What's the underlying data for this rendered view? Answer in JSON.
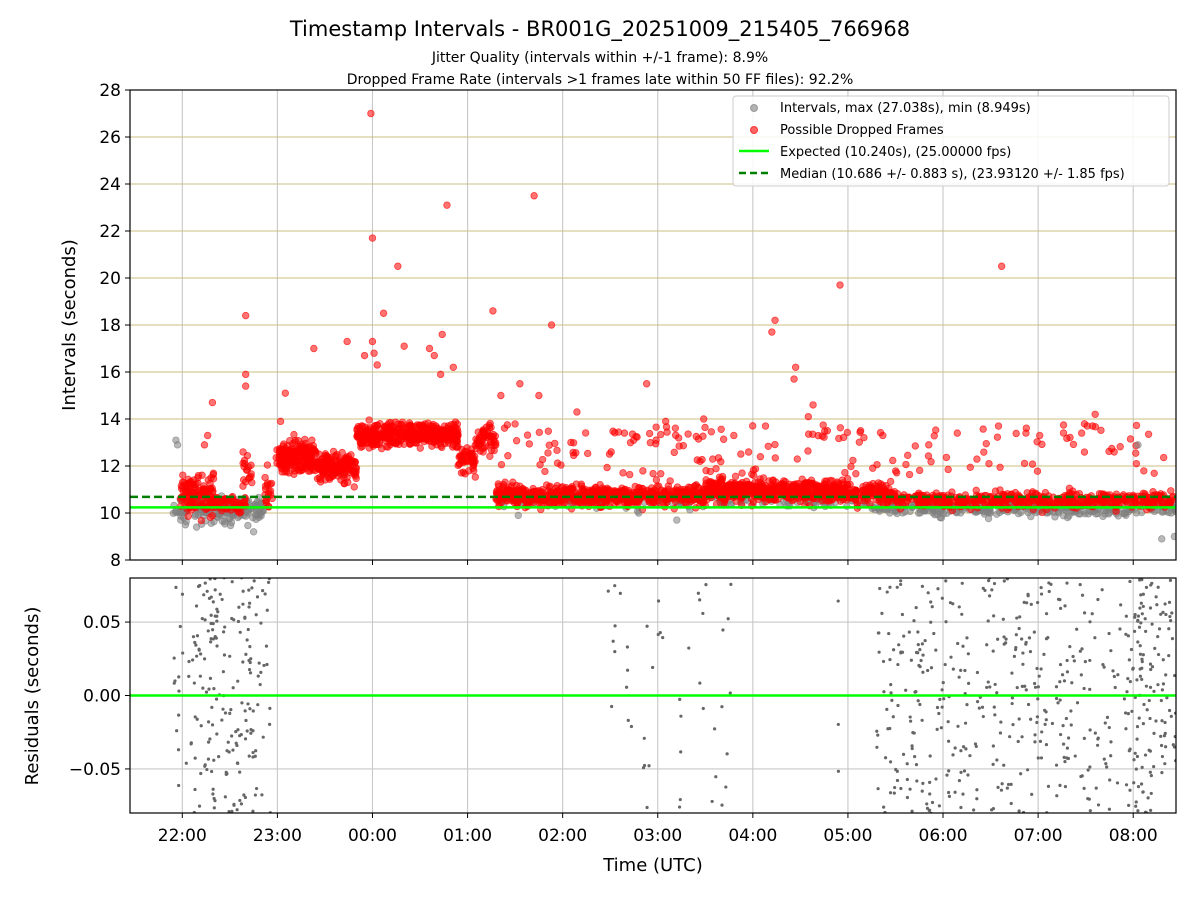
{
  "chart_data": [
    {
      "type": "scatter",
      "title": "Timestamp Intervals - BR001G_20251009_215405_766968",
      "subtitle_lines": [
        "Jitter Quality (intervals within +/-1 frame): 8.9%",
        "Dropped Frame Rate (intervals >1 frames late within 50 FF files): 92.2%"
      ],
      "ylabel": "Intervals (seconds)",
      "xlim": [
        "2025-10-09 21:27",
        "2025-10-10 08:27"
      ],
      "ylim": [
        8,
        28
      ],
      "y_ticks": [
        8,
        10,
        12,
        14,
        16,
        18,
        20,
        22,
        24,
        26,
        28
      ],
      "grid": true,
      "legend": "top-right",
      "legend_entries": [
        {
          "label": "Intervals, max (27.038s), min (8.949s)",
          "marker": "circle",
          "color": "#808080"
        },
        {
          "label": "Possible Dropped Frames",
          "marker": "circle",
          "color": "#ff0000"
        },
        {
          "label": "Expected (10.240s), (25.00000 fps)",
          "marker": "solid-line",
          "color": "#00ff00"
        },
        {
          "label": "Median (10.686 +/- 0.883 s), (23.93120 +/- 1.85 fps)",
          "marker": "dashed-line",
          "color": "#008000"
        }
      ],
      "reference_lines": {
        "expected": 10.24,
        "median": 10.686
      },
      "series": [
        {
          "name": "Possible Dropped Frames",
          "color": "#ff0000",
          "points": [
            [
              "2025-10-09 22:19",
              14.7
            ],
            [
              "2025-10-09 22:16",
              13.3
            ],
            [
              "2025-10-09 22:14",
              12.9
            ],
            [
              "2025-10-09 22:40",
              18.4
            ],
            [
              "2025-10-09 22:40",
              15.9
            ],
            [
              "2025-10-09 22:40",
              15.4
            ],
            [
              "2025-10-09 23:05",
              15.1
            ],
            [
              "2025-10-09 23:02",
              13.9
            ],
            [
              "2025-10-09 23:23",
              17.0
            ],
            [
              "2025-10-09 23:44",
              17.3
            ],
            [
              "2025-10-09 23:59",
              27.0
            ],
            [
              "2025-10-10 00:00",
              21.7
            ],
            [
              "2025-10-10 00:00",
              17.3
            ],
            [
              "2025-10-10 00:01",
              16.8
            ],
            [
              "2025-10-10 00:03",
              16.3
            ],
            [
              "2025-10-09 23:55",
              16.7
            ],
            [
              "2025-10-10 00:07",
              18.5
            ],
            [
              "2025-10-10 00:16",
              20.5
            ],
            [
              "2025-10-10 00:20",
              17.1
            ],
            [
              "2025-10-10 00:36",
              17.0
            ],
            [
              "2025-10-10 00:39",
              16.7
            ],
            [
              "2025-10-10 00:44",
              17.6
            ],
            [
              "2025-10-10 00:47",
              23.1
            ],
            [
              "2025-10-10 00:51",
              16.2
            ],
            [
              "2025-10-10 00:43",
              15.9
            ],
            [
              "2025-10-10 01:16",
              18.6
            ],
            [
              "2025-10-10 01:42",
              23.5
            ],
            [
              "2025-10-10 01:45",
              15.0
            ],
            [
              "2025-10-10 01:53",
              18.0
            ],
            [
              "2025-10-10 01:33",
              15.5
            ],
            [
              "2025-10-10 01:21",
              15.0
            ],
            [
              "2025-10-10 02:09",
              14.3
            ],
            [
              "2025-10-10 02:39",
              13.4
            ],
            [
              "2025-10-10 02:53",
              15.5
            ],
            [
              "2025-10-10 03:05",
              13.9
            ],
            [
              "2025-10-10 03:29",
              14.0
            ],
            [
              "2025-10-10 03:48",
              13.3
            ],
            [
              "2025-10-10 04:08",
              13.7
            ],
            [
              "2025-10-10 04:12",
              17.7
            ],
            [
              "2025-10-10 04:14",
              18.2
            ],
            [
              "2025-10-10 04:27",
              16.2
            ],
            [
              "2025-10-10 04:26",
              15.7
            ],
            [
              "2025-10-10 04:35",
              14.1
            ],
            [
              "2025-10-10 04:38",
              14.6
            ],
            [
              "2025-10-10 04:47",
              13.5
            ],
            [
              "2025-10-10 04:55",
              19.7
            ],
            [
              "2025-10-10 05:08",
              13.5
            ],
            [
              "2025-10-10 05:22",
              13.3
            ],
            [
              "2025-10-10 05:51",
              12.9
            ],
            [
              "2025-10-10 06:09",
              13.4
            ],
            [
              "2025-10-10 06:29",
              12.1
            ],
            [
              "2025-10-10 06:35",
              13.7
            ],
            [
              "2025-10-10 06:37",
              20.5
            ],
            [
              "2025-10-10 07:01",
              13.3
            ],
            [
              "2025-10-10 07:36",
              14.2
            ],
            [
              "2025-10-10 07:48",
              12.6
            ],
            [
              "2025-10-10 08:02",
              12.1
            ]
          ]
        },
        {
          "name": "Intervals, max (27.038s), min (8.949s)",
          "color": "#808080",
          "points": [
            [
              "2025-10-09 21:56",
              13.1
            ],
            [
              "2025-10-09 21:57",
              12.9
            ],
            [
              "2025-10-09 21:59",
              9.7
            ],
            [
              "2025-10-09 22:02",
              9.5
            ],
            [
              "2025-10-09 22:09",
              9.4
            ],
            [
              "2025-10-09 22:31",
              9.6
            ],
            [
              "2025-10-09 22:45",
              9.2
            ],
            [
              "2025-10-10 01:32",
              9.9
            ],
            [
              "2025-10-10 02:48",
              10.0
            ],
            [
              "2025-10-10 03:12",
              9.7
            ],
            [
              "2025-10-10 08:03",
              12.9
            ],
            [
              "2025-10-10 08:18",
              8.9
            ],
            [
              "2025-10-10 08:26",
              9.0
            ]
          ]
        }
      ]
    },
    {
      "type": "scatter",
      "xlabel": "Time (UTC)",
      "ylabel": "Residuals (seconds)",
      "ylim": [
        -0.08,
        0.08
      ],
      "y_ticks": [
        {
          "value": -0.05,
          "label": "−0.05"
        },
        {
          "value": 0.0,
          "label": "0.00"
        },
        {
          "value": 0.05,
          "label": "0.05"
        }
      ],
      "x_ticks": [
        {
          "value": "2025-10-09 22:00",
          "label": "22:00"
        },
        {
          "value": "2025-10-09 23:00",
          "label": "23:00"
        },
        {
          "value": "2025-10-10 00:00",
          "label": "00:00"
        },
        {
          "value": "2025-10-10 01:00",
          "label": "01:00"
        },
        {
          "value": "2025-10-10 02:00",
          "label": "02:00"
        },
        {
          "value": "2025-10-10 03:00",
          "label": "03:00"
        },
        {
          "value": "2025-10-10 04:00",
          "label": "04:00"
        },
        {
          "value": "2025-10-10 05:00",
          "label": "05:00"
        },
        {
          "value": "2025-10-10 06:00",
          "label": "06:00"
        },
        {
          "value": "2025-10-10 07:00",
          "label": "07:00"
        },
        {
          "value": "2025-10-10 08:00",
          "label": "08:00"
        }
      ],
      "grid": true,
      "reference_line": 0.0,
      "point_color": "#666666",
      "line_color": "#00ff00",
      "residual_ranges": [
        {
          "start": "2025-10-09 21:54",
          "end": "2025-10-09 22:08",
          "count": 25
        },
        {
          "start": "2025-10-09 22:08",
          "end": "2025-10-09 22:37",
          "count": 120
        },
        {
          "start": "2025-10-09 22:37",
          "end": "2025-10-09 22:56",
          "count": 70
        },
        {
          "start": "2025-10-10 02:27",
          "end": "2025-10-10 02:42",
          "count": 12
        },
        {
          "start": "2025-10-10 02:42",
          "end": "2025-10-10 03:17",
          "count": 18
        },
        {
          "start": "2025-10-10 03:17",
          "end": "2025-10-10 03:50",
          "count": 18
        },
        {
          "start": "2025-10-10 04:52",
          "end": "2025-10-10 04:55",
          "count": 3
        },
        {
          "start": "2025-10-10 05:18",
          "end": "2025-10-10 06:05",
          "count": 130
        },
        {
          "start": "2025-10-10 06:05",
          "end": "2025-10-10 07:05",
          "count": 150
        },
        {
          "start": "2025-10-10 07:05",
          "end": "2025-10-10 07:55",
          "count": 110
        },
        {
          "start": "2025-10-10 07:55",
          "end": "2025-10-10 08:27",
          "count": 150
        }
      ]
    }
  ]
}
